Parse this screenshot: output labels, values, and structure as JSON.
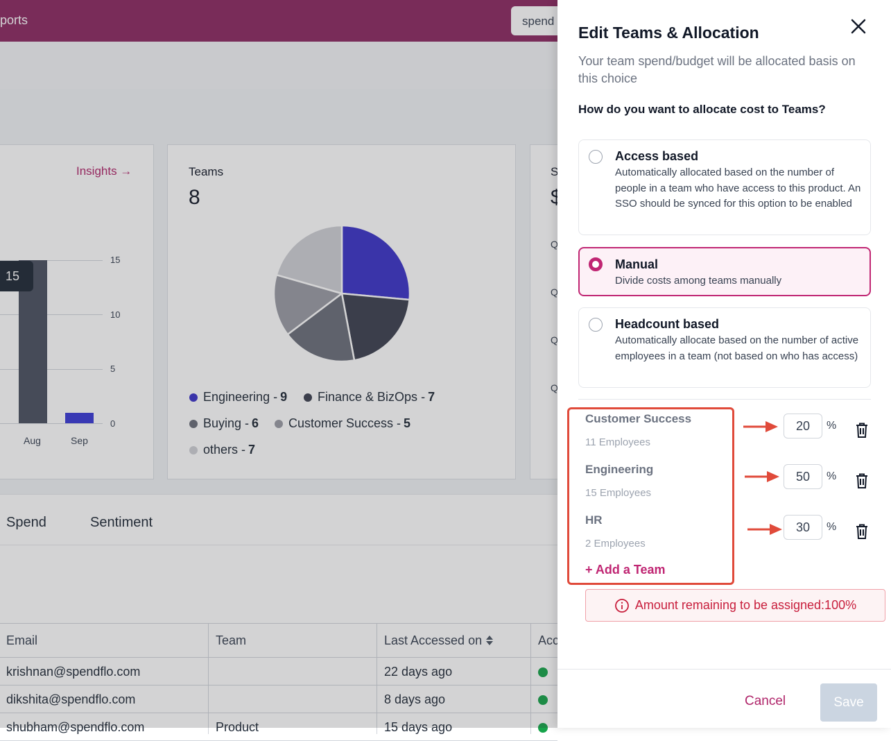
{
  "topbar": {
    "crumb": "ports",
    "search_value": "spend"
  },
  "usage_card": {
    "insights_label": "Insights →",
    "tooltip_value": "15",
    "y_ticks": [
      "15",
      "10",
      "5",
      "0"
    ],
    "x_ticks": [
      "Aug",
      "Sep"
    ],
    "bar_colors": {
      "primary": "#4b5160",
      "secondary": "#3a3ad6"
    }
  },
  "teams_card": {
    "title": "Teams",
    "value": "8",
    "legend": [
      {
        "label": "Engineering - ",
        "count": "9",
        "color": "#3b34c8"
      },
      {
        "label": "Finance & BizOps - ",
        "count": "7",
        "color": "#3d4150"
      },
      {
        "label": "Buying - ",
        "count": "6",
        "color": "#6b6f7a"
      },
      {
        "label": "Customer Success - ",
        "count": "5",
        "color": "#9a9ca5"
      },
      {
        "label": "others - ",
        "count": "7",
        "color": "#cfd0d5"
      }
    ]
  },
  "chart_data": {
    "type": "pie",
    "title": "Teams",
    "categories": [
      "Engineering",
      "Finance & BizOps",
      "Buying",
      "Customer Success",
      "others"
    ],
    "values": [
      9,
      7,
      6,
      5,
      7
    ],
    "colors": [
      "#3b34c8",
      "#3d4150",
      "#6b6f7a",
      "#9a9ca5",
      "#cfd0d5"
    ]
  },
  "third_card": {
    "head_initial": "S",
    "value_initial": "$",
    "row_letter": "Q"
  },
  "tabs": [
    "Spend",
    "Sentiment"
  ],
  "table": {
    "headers": [
      "Email",
      "Team",
      "Last Accessed on",
      "Acc"
    ],
    "rows": [
      {
        "email": "krishnan@spendflo.com",
        "team": "",
        "last": "22 days ago"
      },
      {
        "email": "dikshita@spendflo.com",
        "team": "",
        "last": "8 days ago"
      },
      {
        "email": "shubham@spendflo.com",
        "team": "Product",
        "last": "15 days ago"
      }
    ]
  },
  "drawer": {
    "title": "Edit Teams & Allocation",
    "subtitle": "Your team spend/budget will be allocated basis on this choice",
    "question": "How do you want to allocate cost to Teams?",
    "options": [
      {
        "title": "Access based",
        "desc": "Automatically allocated based on the number of people in a team who have access to this product. An SSO should be synced for this option to be enabled",
        "selected": false
      },
      {
        "title": "Manual",
        "desc": "Divide costs among teams manually",
        "selected": true
      },
      {
        "title": "Headcount based",
        "desc": "Automatically allocate based on the number of active employees in a team (not based on who has access)",
        "selected": false
      }
    ],
    "teams": [
      {
        "name": "Customer Success",
        "employees": "11 Employees",
        "percent": "20"
      },
      {
        "name": "Engineering",
        "employees": "15 Employees",
        "percent": "50"
      },
      {
        "name": "HR",
        "employees": "2 Employees",
        "percent": "30"
      }
    ],
    "percent_sign": "%",
    "add_team_label": "+ Add a Team",
    "alert_text": "Amount remaining to be assigned:100%",
    "cancel_label": "Cancel",
    "save_label": "Save"
  },
  "colors": {
    "brand": "#8c2a62",
    "accent": "#c02673",
    "error": "#c81e3c"
  }
}
